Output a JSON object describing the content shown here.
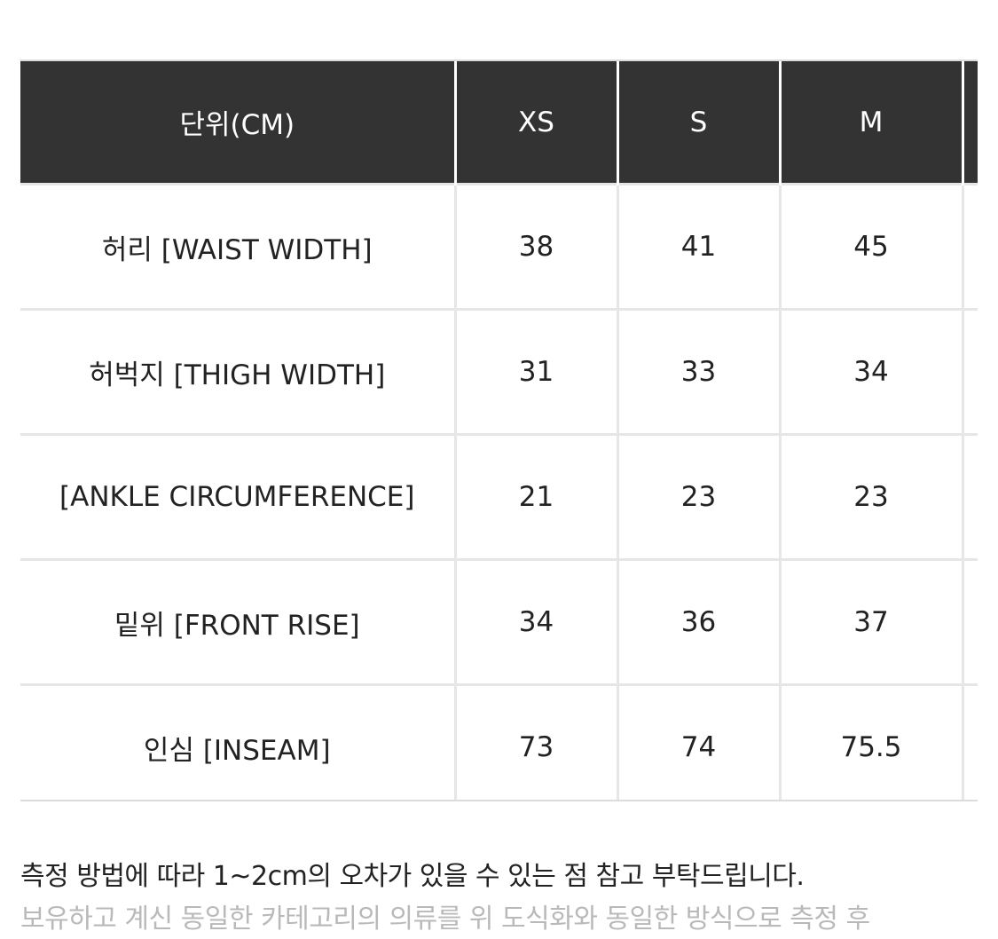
{
  "size_table": {
    "columns": [
      "단위(CM)",
      "XS",
      "S",
      "M",
      ""
    ],
    "rows": [
      {
        "label": "허리 [WAIST WIDTH]",
        "values": [
          "38",
          "41",
          "45",
          ""
        ]
      },
      {
        "label": "허벅지 [THIGH WIDTH]",
        "values": [
          "31",
          "33",
          "34",
          ""
        ]
      },
      {
        "label": "[ANKLE CIRCUMFERENCE]",
        "values": [
          "21",
          "23",
          "23",
          ""
        ]
      },
      {
        "label": "밑위 [FRONT RISE]",
        "values": [
          "34",
          "36",
          "37",
          ""
        ]
      },
      {
        "label": "인심 [INSEAM]",
        "values": [
          "73",
          "74",
          "75.5",
          ""
        ]
      }
    ]
  },
  "notes": {
    "line1": "측정 방법에 따라 1~2cm의 오차가 있을 수 있는 점 참고 부탁드립니다.",
    "line2": "보유하고 계신 동일한 카테고리의 의류를 위 도식화와 동일한 방식으로 측정 후"
  },
  "colors": {
    "header_bg": "#333333",
    "grid": "#e6e6e6",
    "muted_text": "#b9b9b9"
  }
}
